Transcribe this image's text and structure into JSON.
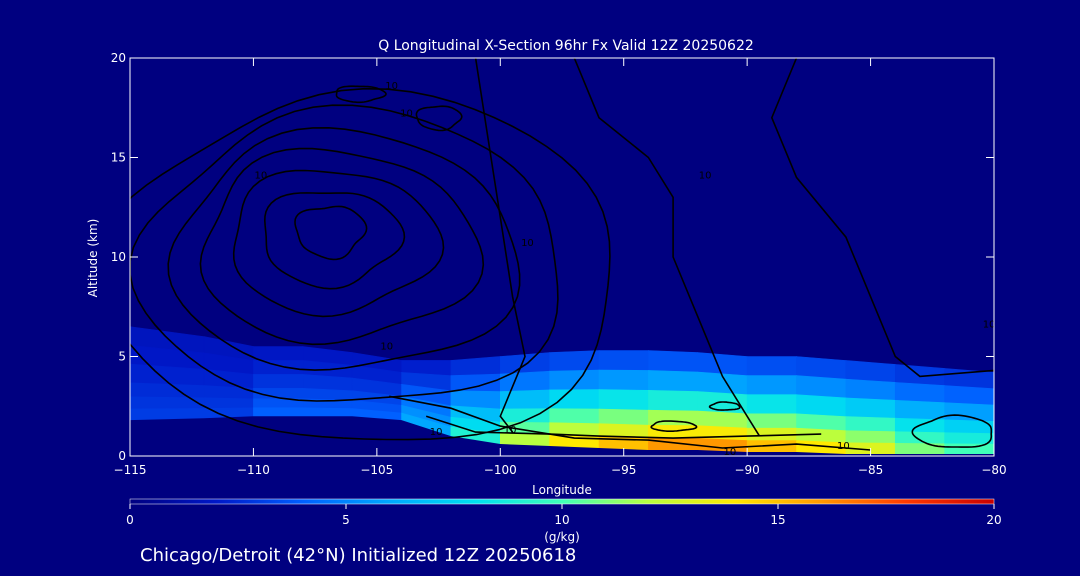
{
  "chart_data": {
    "type": "heatmap",
    "title": "Q Longitudinal X-Section 96hr  Fx Valid 12Z 20250622",
    "xlabel": "Longitude",
    "ylabel": "Altitude (km)",
    "xlim": [
      -115,
      -80
    ],
    "ylim": [
      0,
      20
    ],
    "x_ticks": [
      -115,
      -110,
      -105,
      -100,
      -95,
      -90,
      -85,
      -80
    ],
    "x_tick_labels": [
      "−115",
      "−110",
      "−105",
      "−100",
      "−95",
      "−90",
      "−85",
      "−80"
    ],
    "y_ticks": [
      0,
      5,
      10,
      15,
      20
    ],
    "y_tick_labels": [
      "0",
      "5",
      "10",
      "15",
      "20"
    ],
    "fill_variable": "Q (specific humidity)",
    "colorbar": {
      "label": "(g/kg)",
      "min": 0,
      "max": 20,
      "ticks": [
        0,
        5,
        10,
        15,
        20
      ],
      "tick_labels": [
        "0",
        "5",
        "10",
        "15",
        "20"
      ]
    },
    "moisture_profile": {
      "x": [
        -115,
        -112,
        -110,
        -108,
        -106,
        -104,
        -102,
        -100,
        -98,
        -96,
        -94,
        -92,
        -90,
        -88,
        -86,
        -84,
        -82,
        -80
      ],
      "moist_top_km": [
        6.5,
        6.0,
        5.5,
        5.5,
        5.2,
        4.8,
        4.8,
        5.0,
        5.2,
        5.3,
        5.3,
        5.2,
        5.0,
        5.0,
        4.8,
        4.6,
        4.4,
        4.2
      ],
      "surface_km": [
        1.8,
        1.9,
        2.0,
        2.0,
        2.0,
        1.8,
        1.0,
        0.6,
        0.5,
        0.4,
        0.3,
        0.3,
        0.2,
        0.2,
        0.1,
        0.1,
        0.1,
        0.1
      ],
      "peak_q_gkg": [
        3,
        3,
        4,
        4,
        4,
        6,
        9,
        12,
        14,
        15,
        16,
        16,
        15,
        14,
        13,
        11,
        10,
        10
      ]
    },
    "contour_labels": [
      {
        "text": "10",
        "x": -104.4,
        "y": 18.6
      },
      {
        "text": "10",
        "x": -103.8,
        "y": 17.2
      },
      {
        "text": "10",
        "x": -109.7,
        "y": 14.1
      },
      {
        "text": "10",
        "x": -91.7,
        "y": 14.1
      },
      {
        "text": "10",
        "x": -98.9,
        "y": 10.7
      },
      {
        "text": "10",
        "x": -80.2,
        "y": 6.6
      },
      {
        "text": "10",
        "x": -104.6,
        "y": 5.5
      },
      {
        "text": "10",
        "x": -102.6,
        "y": 1.2
      },
      {
        "text": "10",
        "x": -99.6,
        "y": 1.3
      },
      {
        "text": "10",
        "x": -90.7,
        "y": 0.2
      },
      {
        "text": "10",
        "x": -86.1,
        "y": 0.5
      }
    ]
  },
  "footer": {
    "location_text": "Chicago/Detroit (42°N) Initialized 12Z 20250618"
  }
}
